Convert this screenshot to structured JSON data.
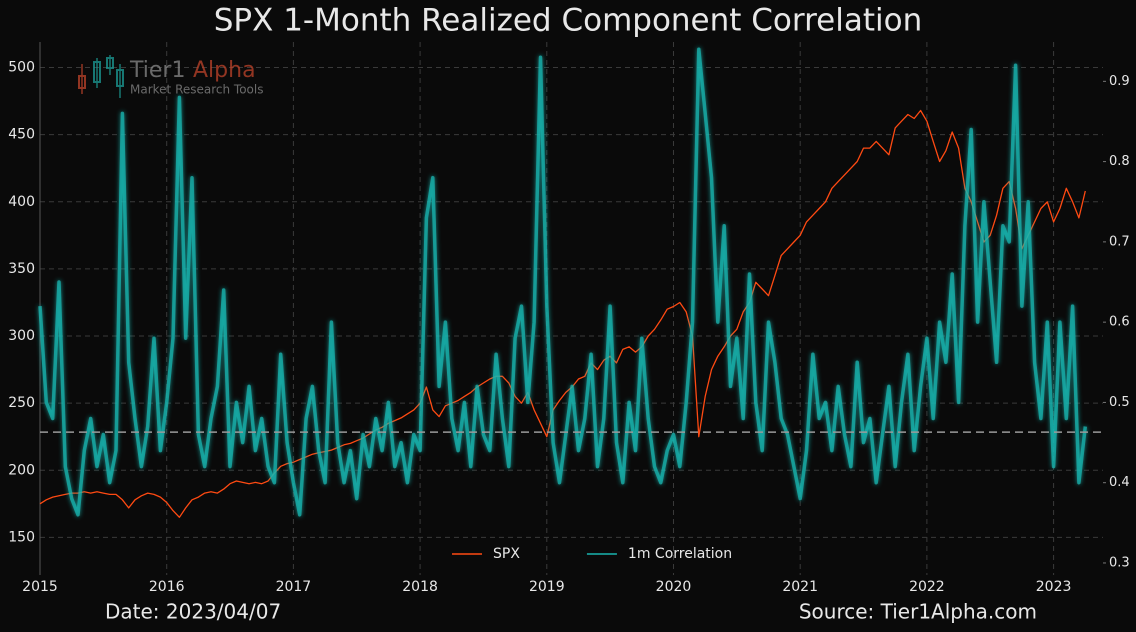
{
  "chart_data": {
    "type": "line",
    "title": "SPX 1-Month Realized Component Correlation",
    "date_label": "Date: 2023/04/07",
    "source": "Source: Tier1Alpha.com",
    "logo": {
      "name_a": "Tier1",
      "name_b": "Alpha",
      "tagline": "Market  Research Tools"
    },
    "x": [
      2015,
      2015.05,
      2015.1,
      2015.15,
      2015.2,
      2015.25,
      2015.3,
      2015.35,
      2015.4,
      2015.45,
      2015.5,
      2015.55,
      2015.6,
      2015.65,
      2015.7,
      2015.75,
      2015.8,
      2015.85,
      2015.9,
      2015.95,
      2016,
      2016.05,
      2016.1,
      2016.15,
      2016.2,
      2016.25,
      2016.3,
      2016.35,
      2016.4,
      2016.45,
      2016.5,
      2016.55,
      2016.6,
      2016.65,
      2016.7,
      2016.75,
      2016.8,
      2016.85,
      2016.9,
      2016.95,
      2017,
      2017.05,
      2017.1,
      2017.15,
      2017.2,
      2017.25,
      2017.3,
      2017.35,
      2017.4,
      2017.45,
      2017.5,
      2017.55,
      2017.6,
      2017.65,
      2017.7,
      2017.75,
      2017.8,
      2017.85,
      2017.9,
      2017.95,
      2018,
      2018.05,
      2018.1,
      2018.15,
      2018.2,
      2018.25,
      2018.3,
      2018.35,
      2018.4,
      2018.45,
      2018.5,
      2018.55,
      2018.6,
      2018.65,
      2018.7,
      2018.75,
      2018.8,
      2018.85,
      2018.9,
      2018.95,
      2019,
      2019.05,
      2019.1,
      2019.15,
      2019.2,
      2019.25,
      2019.3,
      2019.35,
      2019.4,
      2019.45,
      2019.5,
      2019.55,
      2019.6,
      2019.65,
      2019.7,
      2019.75,
      2019.8,
      2019.85,
      2019.9,
      2019.95,
      2020,
      2020.05,
      2020.1,
      2020.15,
      2020.2,
      2020.25,
      2020.3,
      2020.35,
      2020.4,
      2020.45,
      2020.5,
      2020.55,
      2020.6,
      2020.65,
      2020.7,
      2020.75,
      2020.8,
      2020.85,
      2020.9,
      2020.95,
      2021,
      2021.05,
      2021.1,
      2021.15,
      2021.2,
      2021.25,
      2021.3,
      2021.35,
      2021.4,
      2021.45,
      2021.5,
      2021.55,
      2021.6,
      2021.65,
      2021.7,
      2021.75,
      2021.8,
      2021.85,
      2021.9,
      2021.95,
      2022,
      2022.05,
      2022.1,
      2022.15,
      2022.2,
      2022.25,
      2022.3,
      2022.35,
      2022.4,
      2022.45,
      2022.5,
      2022.55,
      2022.6,
      2022.65,
      2022.7,
      2022.75,
      2022.8,
      2022.85,
      2022.9,
      2022.95,
      2023,
      2023.05,
      2023.1,
      2023.15,
      2023.2,
      2023.25
    ],
    "series": [
      {
        "name": "SPX",
        "color": "#ff4a12",
        "axis": "y",
        "values": [
          175,
          178,
          180,
          181,
          182,
          183,
          183,
          184,
          183,
          184,
          183,
          182,
          182,
          178,
          172,
          178,
          181,
          183,
          182,
          180,
          176,
          170,
          165,
          172,
          178,
          180,
          183,
          184,
          183,
          186,
          190,
          192,
          191,
          190,
          191,
          190,
          192,
          198,
          203,
          205,
          206,
          208,
          210,
          212,
          213,
          214,
          215,
          217,
          219,
          220,
          222,
          224,
          227,
          230,
          232,
          235,
          237,
          239,
          242,
          245,
          250,
          262,
          245,
          240,
          248,
          250,
          252,
          255,
          258,
          262,
          265,
          268,
          270,
          270,
          265,
          255,
          250,
          258,
          245,
          235,
          225,
          245,
          252,
          258,
          262,
          268,
          270,
          280,
          275,
          282,
          285,
          280,
          290,
          292,
          288,
          292,
          300,
          305,
          312,
          320,
          322,
          325,
          318,
          300,
          225,
          255,
          275,
          285,
          292,
          300,
          305,
          318,
          325,
          340,
          335,
          330,
          345,
          360,
          365,
          370,
          375,
          385,
          390,
          395,
          400,
          410,
          415,
          420,
          425,
          430,
          440,
          440,
          445,
          440,
          435,
          455,
          460,
          465,
          462,
          468,
          460,
          445,
          430,
          438,
          452,
          440,
          410,
          400,
          385,
          370,
          375,
          390,
          410,
          415,
          395,
          365,
          375,
          385,
          395,
          400,
          385,
          395,
          410,
          400,
          388,
          408
        ]
      },
      {
        "name": "1m Correlation",
        "color": "#19b5b0",
        "axis": "y2",
        "values": [
          0.62,
          0.5,
          0.48,
          0.65,
          0.42,
          0.38,
          0.36,
          0.44,
          0.48,
          0.42,
          0.46,
          0.4,
          0.44,
          0.86,
          0.55,
          0.48,
          0.42,
          0.47,
          0.58,
          0.44,
          0.5,
          0.58,
          0.88,
          0.58,
          0.78,
          0.46,
          0.42,
          0.48,
          0.52,
          0.64,
          0.42,
          0.5,
          0.45,
          0.52,
          0.44,
          0.48,
          0.42,
          0.4,
          0.56,
          0.45,
          0.4,
          0.36,
          0.48,
          0.52,
          0.44,
          0.4,
          0.6,
          0.45,
          0.4,
          0.44,
          0.38,
          0.46,
          0.42,
          0.48,
          0.44,
          0.5,
          0.42,
          0.45,
          0.4,
          0.46,
          0.44,
          0.73,
          0.78,
          0.52,
          0.6,
          0.48,
          0.44,
          0.5,
          0.42,
          0.52,
          0.46,
          0.44,
          0.56,
          0.48,
          0.42,
          0.58,
          0.62,
          0.5,
          0.6,
          0.93,
          0.62,
          0.45,
          0.4,
          0.46,
          0.52,
          0.44,
          0.48,
          0.56,
          0.42,
          0.48,
          0.62,
          0.45,
          0.4,
          0.5,
          0.44,
          0.58,
          0.48,
          0.42,
          0.4,
          0.44,
          0.46,
          0.42,
          0.5,
          0.6,
          0.94,
          0.86,
          0.78,
          0.6,
          0.72,
          0.52,
          0.58,
          0.48,
          0.66,
          0.5,
          0.44,
          0.6,
          0.55,
          0.48,
          0.46,
          0.42,
          0.38,
          0.44,
          0.56,
          0.48,
          0.5,
          0.44,
          0.52,
          0.46,
          0.42,
          0.55,
          0.45,
          0.48,
          0.4,
          0.46,
          0.52,
          0.42,
          0.5,
          0.56,
          0.44,
          0.52,
          0.58,
          0.48,
          0.6,
          0.55,
          0.66,
          0.5,
          0.72,
          0.84,
          0.6,
          0.75,
          0.65,
          0.55,
          0.72,
          0.7,
          0.92,
          0.62,
          0.75,
          0.55,
          0.48,
          0.6,
          0.42,
          0.6,
          0.48,
          0.62,
          0.4,
          0.47
        ]
      }
    ],
    "xlim": [
      2015,
      2023.39
    ],
    "xticks": [
      2015,
      2016,
      2017,
      2018,
      2019,
      2020,
      2021,
      2022,
      2023
    ],
    "ylim": [
      122,
      519
    ],
    "yticks": [
      150,
      200,
      250,
      300,
      350,
      400,
      450,
      500
    ],
    "y2lim": [
      0.285,
      0.949
    ],
    "y2ticks": [
      0.3,
      0.4,
      0.5,
      0.6,
      0.7,
      0.8,
      0.9
    ],
    "y2_hline": 0.463,
    "grid": true,
    "legend": "bottom"
  }
}
